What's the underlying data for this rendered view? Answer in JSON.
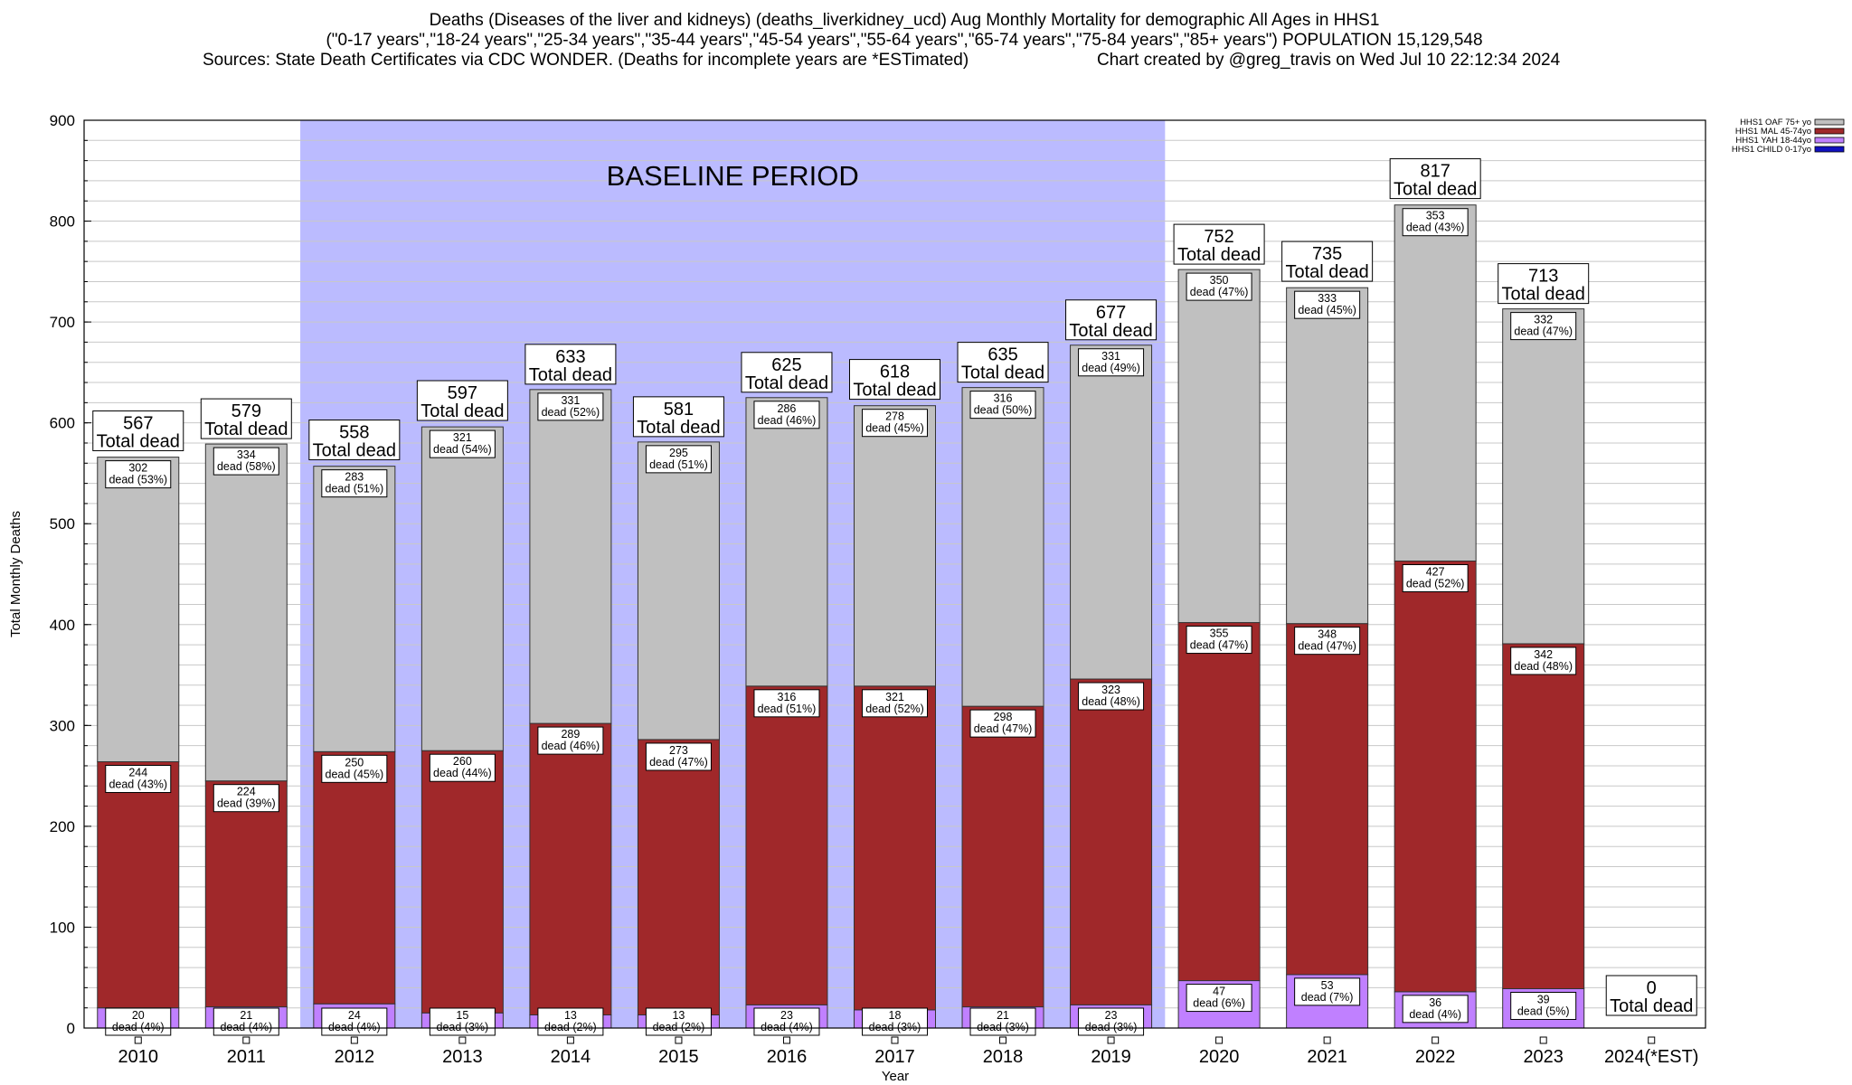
{
  "chart_data": {
    "type": "bar",
    "stacked": true,
    "title_lines": [
      "Deaths (Diseases of the liver and kidneys) (deaths_liverkidney_ucd) Aug Monthly Mortality for demographic All Ages in HHS1",
      "(\"0-17 years\",\"18-24 years\",\"25-34 years\",\"35-44 years\",\"45-54 years\",\"55-64 years\",\"65-74 years\",\"75-84 years\",\"85+ years\") POPULATION 15,129,548",
      "Sources: State Death Certificates via CDC WONDER. (Deaths for incomplete years are *ESTimated)",
      "Chart created by @greg_travis on Wed Jul 10 22:12:34 2024"
    ],
    "xlabel": "Year",
    "ylabel": "Total Monthly Deaths",
    "ylim": [
      0,
      900
    ],
    "yticks": [
      0,
      100,
      200,
      300,
      400,
      500,
      600,
      700,
      800,
      900
    ],
    "grid": true,
    "legend_position": "top-right",
    "baseline": {
      "label": "BASELINE PERIOD",
      "from": "2012",
      "to": "2019",
      "color": "#bbbbff"
    },
    "categories": [
      "2010",
      "2011",
      "2012",
      "2013",
      "2014",
      "2015",
      "2016",
      "2017",
      "2018",
      "2019",
      "2020",
      "2021",
      "2022",
      "2023",
      "2024(*EST)"
    ],
    "series": [
      {
        "name": "HHS1 CHILD 0-17yo",
        "color": "#1010c0",
        "values": [
          0,
          0,
          0,
          0,
          0,
          0,
          0,
          0,
          0,
          0,
          0,
          0,
          0,
          0,
          0
        ],
        "labels": [
          "",
          "",
          "",
          "",
          "",
          "",
          "",
          "",
          "",
          "",
          "",
          "",
          "",
          "",
          ""
        ]
      },
      {
        "name": "HHS1 YAH 18-44yo",
        "color": "#c080ff",
        "values": [
          20,
          21,
          24,
          15,
          13,
          13,
          23,
          18,
          21,
          23,
          47,
          53,
          36,
          39,
          0
        ],
        "labels": [
          "dead (4%)",
          "dead (4%)",
          "dead (4%)",
          "dead (3%)",
          "dead (2%)",
          "dead (2%)",
          "dead (4%)",
          "dead (3%)",
          "dead (3%)",
          "dead (3%)",
          "dead (6%)",
          "dead (7%)",
          "dead (4%)",
          "dead (5%)",
          ""
        ]
      },
      {
        "name": "HHS1 MAL 45-74yo",
        "color": "#a0282a",
        "values": [
          244,
          224,
          250,
          260,
          289,
          273,
          316,
          321,
          298,
          323,
          355,
          348,
          427,
          342,
          0
        ],
        "labels": [
          "dead (43%)",
          "dead (39%)",
          "dead (45%)",
          "dead (44%)",
          "dead (46%)",
          "dead (47%)",
          "dead (51%)",
          "dead (52%)",
          "dead (47%)",
          "dead (48%)",
          "dead (47%)",
          "dead (47%)",
          "dead (52%)",
          "dead (48%)",
          ""
        ]
      },
      {
        "name": "HHS1 OAF 75+ yo",
        "color": "#c0c0c0",
        "values": [
          302,
          334,
          283,
          321,
          331,
          295,
          286,
          278,
          316,
          331,
          350,
          333,
          353,
          332,
          0
        ],
        "labels": [
          "dead (53%)",
          "dead (58%)",
          "dead (51%)",
          "dead (54%)",
          "dead (52%)",
          "dead (51%)",
          "dead (46%)",
          "dead (45%)",
          "dead (50%)",
          "dead (49%)",
          "dead (47%)",
          "dead (45%)",
          "dead (43%)",
          "dead (47%)",
          ""
        ]
      }
    ],
    "totals": [
      567,
      579,
      558,
      597,
      633,
      581,
      625,
      618,
      635,
      677,
      752,
      735,
      817,
      713,
      0
    ],
    "total_label": "Total dead"
  }
}
